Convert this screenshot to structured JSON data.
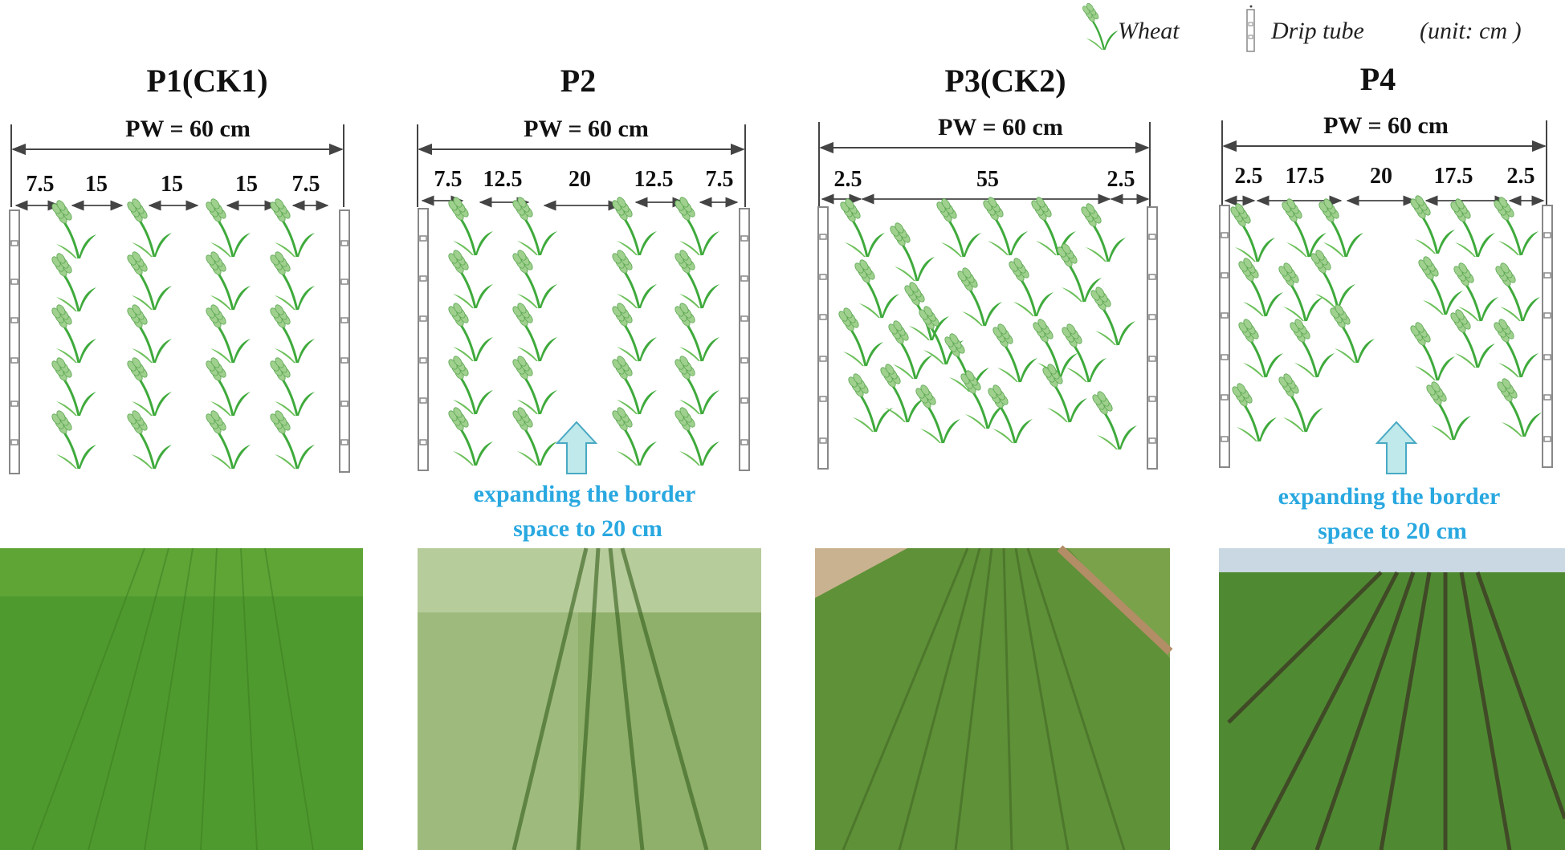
{
  "legend": {
    "wheat_label": "Wheat",
    "drip_label": "Drip tube",
    "unit_label": "(unit: cm )"
  },
  "colors": {
    "leaf": "#3faa3c",
    "leaf_light": "#8bd17a",
    "spike": "#9fd08e",
    "tube_stroke": "#888888",
    "line": "#444444",
    "note": "#29a8e0",
    "arrow_fill": "#bfe9ea",
    "arrow_stroke": "#49a9c4"
  },
  "panels": [
    {
      "id": "p1",
      "title": "P1(CK1)",
      "pw_label": "PW = 60 cm",
      "segments": [
        "7.5",
        "15",
        "15",
        "15",
        "7.5"
      ],
      "note": [],
      "photo_icon": "green-wheat-field-photo"
    },
    {
      "id": "p2",
      "title": "P2",
      "pw_label": "PW = 60 cm",
      "segments": [
        "7.5",
        "12.5",
        "20",
        "12.5",
        "7.5"
      ],
      "note": [
        "expanding the border",
        "space to 20 cm"
      ],
      "photo_icon": "pale-wheat-field-photo"
    },
    {
      "id": "p3",
      "title": "P3(CK2)",
      "pw_label": "PW = 60 cm",
      "segments": [
        "2.5",
        "55",
        "2.5"
      ],
      "note": [],
      "photo_icon": "drip-irrigated-wheat-field-photo"
    },
    {
      "id": "p4",
      "title": "P4",
      "pw_label": "PW = 60 cm",
      "segments": [
        "2.5",
        "17.5",
        "20",
        "17.5",
        "2.5"
      ],
      "note": [
        "expanding the border",
        "space to 20 cm"
      ],
      "photo_icon": "row-wheat-field-photo"
    }
  ]
}
